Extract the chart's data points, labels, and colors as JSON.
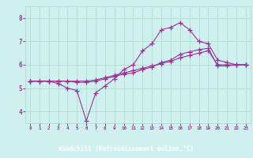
{
  "background_color": "#cff0ee",
  "plot_bg_color": "#cff0ee",
  "grid_color": "#aaddcc",
  "line_color": "#993399",
  "xlabel_bg_color": "#993399",
  "xlabel_text_color": "#ffffff",
  "tick_color": "#993399",
  "marker": "+",
  "xlabel": "Windchill (Refroidissement éolien,°C)",
  "xlim": [
    -0.5,
    23.5
  ],
  "ylim": [
    3.5,
    8.5
  ],
  "yticks": [
    4,
    5,
    6,
    7,
    8
  ],
  "xticks": [
    0,
    1,
    2,
    3,
    4,
    5,
    6,
    7,
    8,
    9,
    10,
    11,
    12,
    13,
    14,
    15,
    16,
    17,
    18,
    19,
    20,
    21,
    22,
    23
  ],
  "series1_x": [
    0,
    1,
    2,
    3,
    4,
    5,
    6,
    7,
    8,
    9,
    10,
    11,
    12,
    13,
    14,
    15,
    16,
    17,
    18,
    19,
    20,
    21,
    22,
    23
  ],
  "series1_y": [
    5.3,
    5.3,
    5.3,
    5.2,
    5.0,
    4.9,
    3.6,
    4.8,
    5.1,
    5.4,
    5.8,
    6.0,
    6.6,
    6.9,
    7.5,
    7.6,
    7.8,
    7.5,
    7.0,
    6.9,
    6.2,
    6.1,
    6.0,
    6.0
  ],
  "series2_x": [
    0,
    1,
    2,
    3,
    4,
    5,
    6,
    7,
    8,
    9,
    10,
    11,
    12,
    13,
    14,
    15,
    16,
    17,
    18,
    19,
    20,
    21,
    22,
    23
  ],
  "series2_y": [
    5.3,
    5.3,
    5.3,
    5.3,
    5.3,
    5.25,
    5.25,
    5.3,
    5.4,
    5.5,
    5.6,
    5.65,
    5.8,
    5.9,
    6.1,
    6.2,
    6.45,
    6.55,
    6.65,
    6.7,
    5.95,
    5.95,
    6.0,
    6.0
  ],
  "series3_x": [
    0,
    1,
    2,
    3,
    4,
    5,
    6,
    7,
    8,
    9,
    10,
    11,
    12,
    13,
    14,
    15,
    16,
    17,
    18,
    19,
    20,
    21,
    22,
    23
  ],
  "series3_y": [
    5.3,
    5.3,
    5.3,
    5.3,
    5.3,
    5.3,
    5.3,
    5.35,
    5.45,
    5.55,
    5.65,
    5.75,
    5.85,
    5.95,
    6.05,
    6.15,
    6.3,
    6.4,
    6.5,
    6.6,
    6.0,
    6.0,
    6.0,
    6.0
  ]
}
